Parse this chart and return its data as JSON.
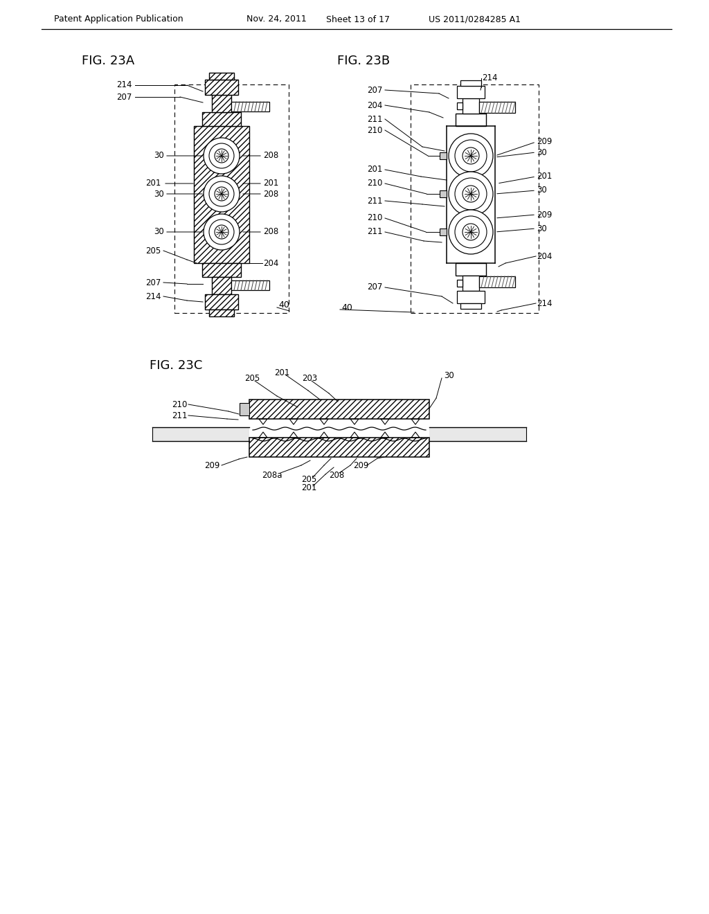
{
  "bg_color": "#ffffff",
  "header_text": "Patent Application Publication",
  "header_date": "Nov. 24, 2011",
  "header_sheet": "Sheet 13 of 17",
  "header_patent": "US 2011/0284285 A1",
  "fig23a_label": "FIG. 23A",
  "fig23b_label": "FIG. 23B",
  "fig23c_label": "FIG. 23C",
  "line_color": "#000000",
  "hatch_color": "#000000",
  "bg_white": "#ffffff",
  "bg_light": "#f0f0f0"
}
